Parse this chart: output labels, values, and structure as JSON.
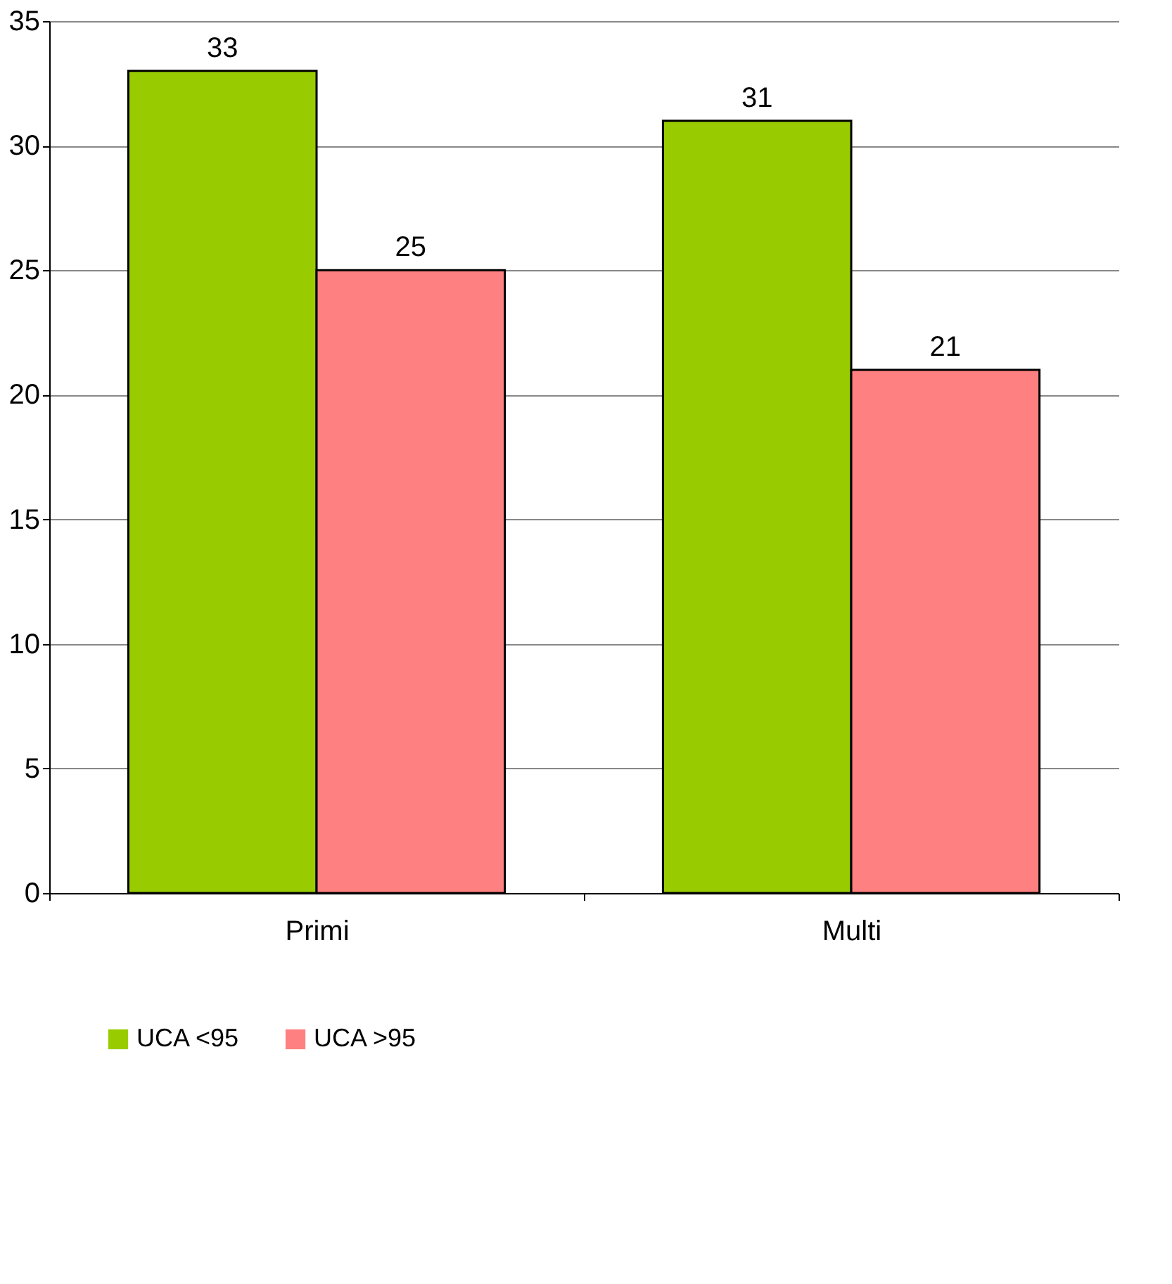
{
  "chart_data": {
    "type": "bar",
    "categories": [
      "Primi",
      "Multi"
    ],
    "series": [
      {
        "name": "UCA <95",
        "color": "#99cc00",
        "values": [
          33,
          31
        ]
      },
      {
        "name": "UCA >95",
        "color": "#ff8080",
        "values": [
          25,
          21
        ]
      }
    ],
    "ylim": [
      0,
      35
    ],
    "yticks": [
      0,
      5,
      10,
      15,
      20,
      25,
      30,
      35
    ],
    "grid": "y",
    "legend": "bottom",
    "data_labels": true
  }
}
